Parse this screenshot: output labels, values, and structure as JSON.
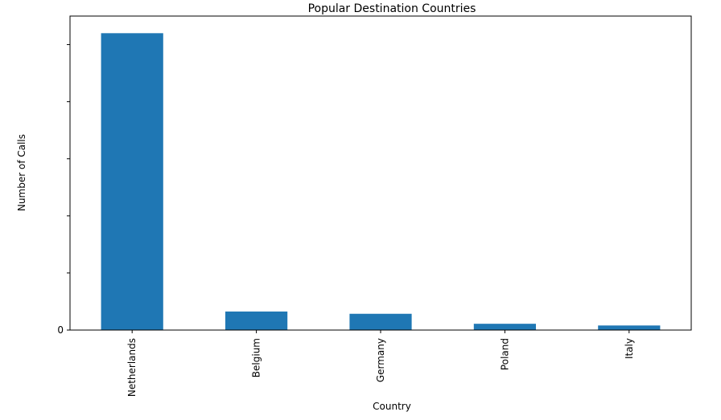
{
  "chart_data": {
    "type": "bar",
    "title": "Popular Destination Countries",
    "xlabel": "Country",
    "ylabel": "Number of Calls",
    "categories": [
      "Netherlands",
      "Belgium",
      "Germany",
      "Poland",
      "Italy"
    ],
    "values": [
      1040,
      65,
      57,
      22,
      16
    ],
    "ylim": [
      0,
      1100
    ],
    "y_tick_values": [
      0,
      200,
      400,
      600,
      800,
      1000
    ],
    "y_tick_labels": [
      "0",
      "",
      "",
      "",
      "",
      ""
    ],
    "grid": false,
    "legend": "none",
    "bar_color": "#1f77b4"
  }
}
